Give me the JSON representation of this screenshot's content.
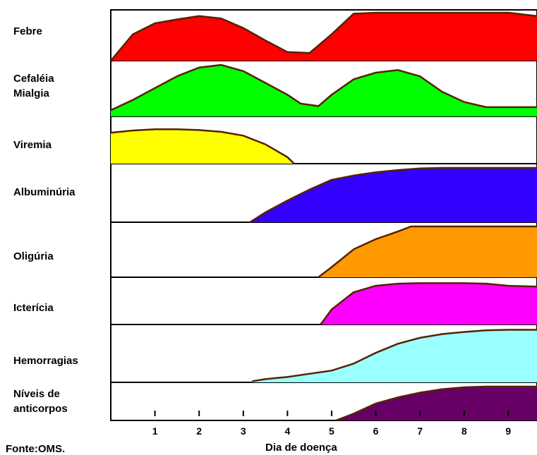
{
  "chart_data": {
    "type": "area",
    "title": "",
    "xlabel": "Dia de doença",
    "ylabel": "",
    "source": "Fonte:OMS.",
    "xlim": [
      0,
      9.65
    ],
    "xticks": [
      1,
      2,
      3,
      4,
      5,
      6,
      7,
      8,
      9
    ],
    "series": [
      {
        "name": "Febre",
        "color": "#ff0000",
        "points": [
          [
            0,
            0
          ],
          [
            0.5,
            0.55
          ],
          [
            1.0,
            0.78
          ],
          [
            1.5,
            0.86
          ],
          [
            2.0,
            0.93
          ],
          [
            2.5,
            0.88
          ],
          [
            3.0,
            0.68
          ],
          [
            3.5,
            0.42
          ],
          [
            4.0,
            0.18
          ],
          [
            4.5,
            0.16
          ],
          [
            5.0,
            0.55
          ],
          [
            5.5,
            0.98
          ],
          [
            6.0,
            1.0
          ],
          [
            7.0,
            1.0
          ],
          [
            8.0,
            1.0
          ],
          [
            9.0,
            1.0
          ],
          [
            9.65,
            0.93
          ]
        ]
      },
      {
        "name": "Cefaléia\nMialgia",
        "color": "#00ff00",
        "points": [
          [
            0,
            0.12
          ],
          [
            0.5,
            0.32
          ],
          [
            1.0,
            0.55
          ],
          [
            1.5,
            0.78
          ],
          [
            2.0,
            0.95
          ],
          [
            2.5,
            1.0
          ],
          [
            3.0,
            0.88
          ],
          [
            3.5,
            0.65
          ],
          [
            4.0,
            0.42
          ],
          [
            4.3,
            0.25
          ],
          [
            4.7,
            0.2
          ],
          [
            5.0,
            0.42
          ],
          [
            5.5,
            0.72
          ],
          [
            6.0,
            0.85
          ],
          [
            6.5,
            0.9
          ],
          [
            7.0,
            0.78
          ],
          [
            7.5,
            0.48
          ],
          [
            8.0,
            0.28
          ],
          [
            8.5,
            0.18
          ],
          [
            9.0,
            0.18
          ],
          [
            9.65,
            0.18
          ]
        ]
      },
      {
        "name": "Viremia",
        "color": "#ffff00",
        "points": [
          [
            0,
            0.72
          ],
          [
            0.5,
            0.77
          ],
          [
            1.0,
            0.8
          ],
          [
            1.5,
            0.8
          ],
          [
            2.0,
            0.78
          ],
          [
            2.5,
            0.74
          ],
          [
            3.0,
            0.65
          ],
          [
            3.5,
            0.45
          ],
          [
            4.0,
            0.15
          ],
          [
            4.15,
            0
          ],
          [
            4.15,
            0
          ]
        ]
      },
      {
        "name": "Albuminúria",
        "color": "#3300ff",
        "points": [
          [
            3.15,
            0
          ],
          [
            3.5,
            0.18
          ],
          [
            4.0,
            0.4
          ],
          [
            4.5,
            0.6
          ],
          [
            5.0,
            0.78
          ],
          [
            5.5,
            0.86
          ],
          [
            6.0,
            0.92
          ],
          [
            6.5,
            0.96
          ],
          [
            7.0,
            0.99
          ],
          [
            7.5,
            1.0
          ],
          [
            8.0,
            1.0
          ],
          [
            9.0,
            1.0
          ],
          [
            9.65,
            1.0
          ]
        ]
      },
      {
        "name": "Oligúria",
        "color": "#ff9900",
        "points": [
          [
            4.7,
            0
          ],
          [
            5.0,
            0.2
          ],
          [
            5.5,
            0.55
          ],
          [
            6.0,
            0.75
          ],
          [
            6.5,
            0.9
          ],
          [
            6.8,
            1.0
          ],
          [
            7.0,
            1.0
          ],
          [
            8.0,
            1.0
          ],
          [
            9.0,
            1.0
          ],
          [
            9.65,
            1.0
          ]
        ]
      },
      {
        "name": "Icterícia",
        "color": "#ff00ff",
        "points": [
          [
            4.75,
            0
          ],
          [
            5.0,
            0.35
          ],
          [
            5.5,
            0.75
          ],
          [
            6.0,
            0.9
          ],
          [
            6.5,
            0.95
          ],
          [
            7.0,
            0.96
          ],
          [
            7.5,
            0.96
          ],
          [
            8.0,
            0.96
          ],
          [
            8.5,
            0.95
          ],
          [
            9.0,
            0.9
          ],
          [
            9.65,
            0.88
          ]
        ]
      },
      {
        "name": "Hemorragias",
        "color": "#99ffff",
        "points": [
          [
            3.2,
            0.02
          ],
          [
            3.5,
            0.06
          ],
          [
            4.0,
            0.1
          ],
          [
            4.5,
            0.16
          ],
          [
            5.0,
            0.22
          ],
          [
            5.5,
            0.35
          ],
          [
            6.0,
            0.55
          ],
          [
            6.5,
            0.72
          ],
          [
            7.0,
            0.83
          ],
          [
            7.5,
            0.9
          ],
          [
            8.0,
            0.94
          ],
          [
            8.5,
            0.97
          ],
          [
            9.0,
            0.98
          ],
          [
            9.65,
            0.98
          ]
        ]
      },
      {
        "name": "Níveis de\nanticorpos",
        "color": "#660066",
        "points": [
          [
            5.1,
            0
          ],
          [
            5.5,
            0.2
          ],
          [
            6.0,
            0.5
          ],
          [
            6.5,
            0.68
          ],
          [
            7.0,
            0.82
          ],
          [
            7.5,
            0.92
          ],
          [
            8.0,
            0.98
          ],
          [
            8.5,
            1.0
          ],
          [
            9.0,
            1.0
          ],
          [
            9.65,
            1.0
          ]
        ]
      }
    ]
  }
}
